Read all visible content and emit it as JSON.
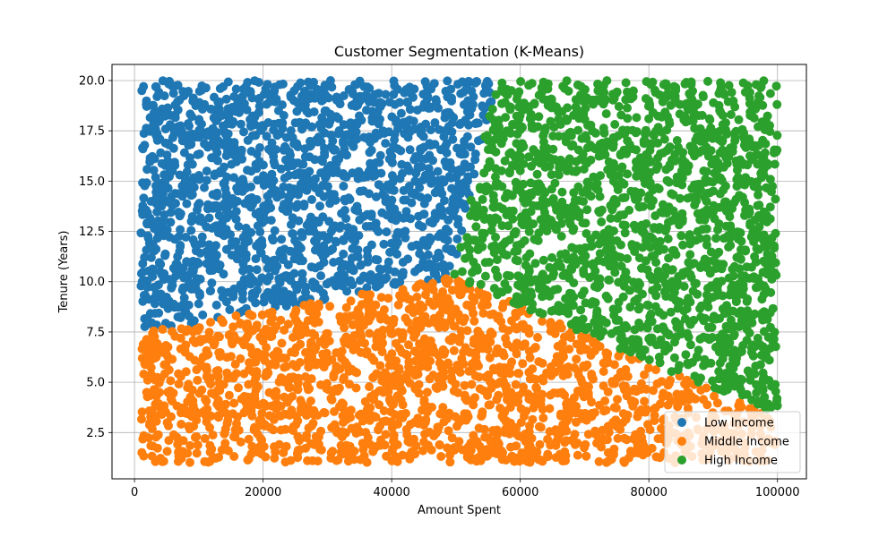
{
  "chart_data": {
    "type": "scatter",
    "title": "Customer Segmentation (K-Means)",
    "xlabel": "Amount Spent",
    "ylabel": "Tenure (Years)",
    "xlim": [
      -3500,
      104500
    ],
    "ylim": [
      0.2,
      20.8
    ],
    "xticks": [
      0,
      20000,
      40000,
      60000,
      80000,
      100000
    ],
    "yticks": [
      2.5,
      5.0,
      7.5,
      10.0,
      12.5,
      15.0,
      17.5,
      20.0
    ],
    "xtick_labels": [
      "0",
      "20000",
      "40000",
      "60000",
      "80000",
      "100000"
    ],
    "ytick_labels": [
      "2.5",
      "5.0",
      "7.5",
      "10.0",
      "12.5",
      "15.0",
      "17.5",
      "20.0"
    ],
    "grid": true,
    "legend": "lower-right",
    "point_count": 5000,
    "series": [
      {
        "name": "Low Income",
        "color": "#1f77b4"
      },
      {
        "name": "Middle Income",
        "color": "#ff7f0e"
      },
      {
        "name": "High Income",
        "color": "#2ca02c"
      }
    ],
    "cluster_centers": [
      {
        "series": "Low Income",
        "x": 26000,
        "y": 14.8
      },
      {
        "series": "Middle Income",
        "x": 43000,
        "y": 4.0
      },
      {
        "series": "High Income",
        "x": 78500,
        "y": 13.4
      }
    ],
    "data_domain": {
      "x": [
        1000,
        100000
      ],
      "y": [
        1.0,
        20.0
      ]
    }
  }
}
